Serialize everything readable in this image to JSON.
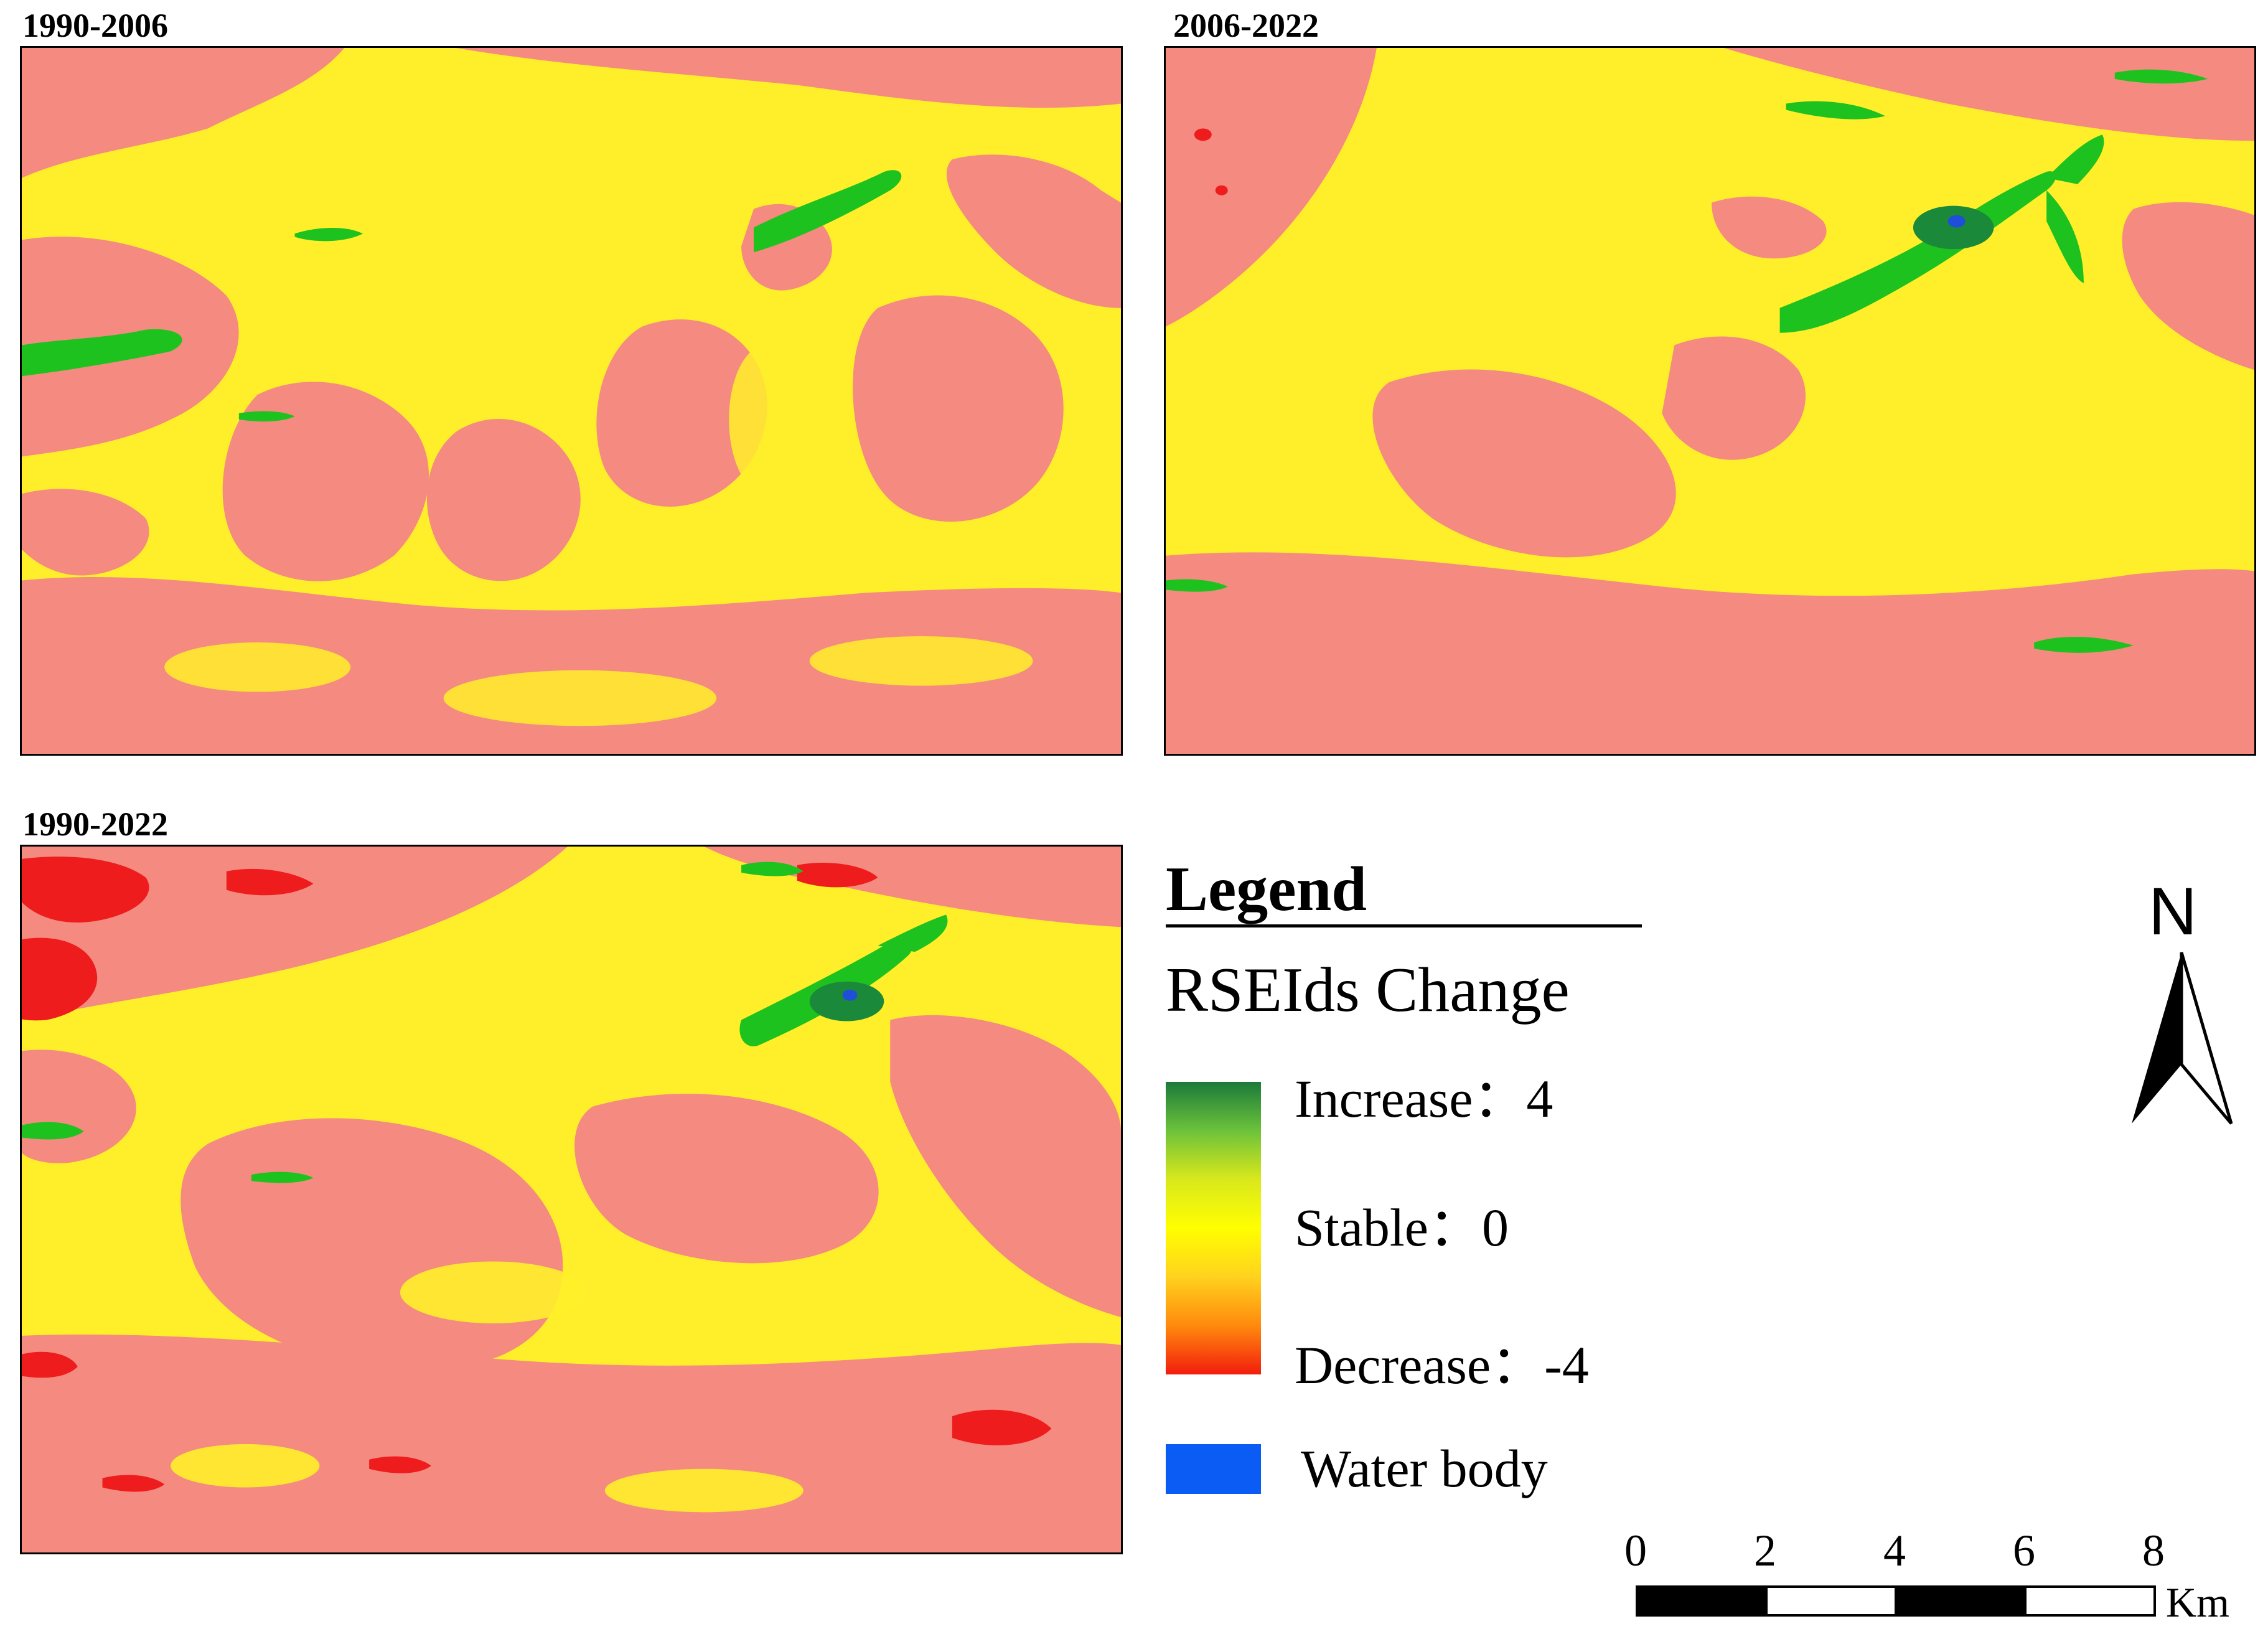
{
  "panels": [
    {
      "title": "1990-2006"
    },
    {
      "title": "2006-2022"
    },
    {
      "title": "1990-2022"
    }
  ],
  "legend": {
    "heading": "Legend",
    "subtitle": "RSEIds Change",
    "increase_label": "Increase：4",
    "stable_label": "Stable：0",
    "decrease_label": "Decrease：-4",
    "water_label": "Water body"
  },
  "ramp_colors": [
    "#1b7a3a",
    "#6cc23a",
    "#d9e81c",
    "#ffff00",
    "#ffd21e",
    "#ff8a0d",
    "#f21d0d"
  ],
  "water_color": "#0a5cf5",
  "map_colors": {
    "stable": "#ffef2a",
    "slight_decrease": "#f58a80",
    "decrease": "#ee1c1c",
    "increase": "#1ec21e",
    "strong_increase": "#1a8a3a",
    "water": "#1f4fd8"
  },
  "scalebar": {
    "ticks": [
      "0",
      "2",
      "4",
      "6",
      "8"
    ],
    "unit": "Km"
  },
  "north_arrow": {
    "letter": "N"
  }
}
